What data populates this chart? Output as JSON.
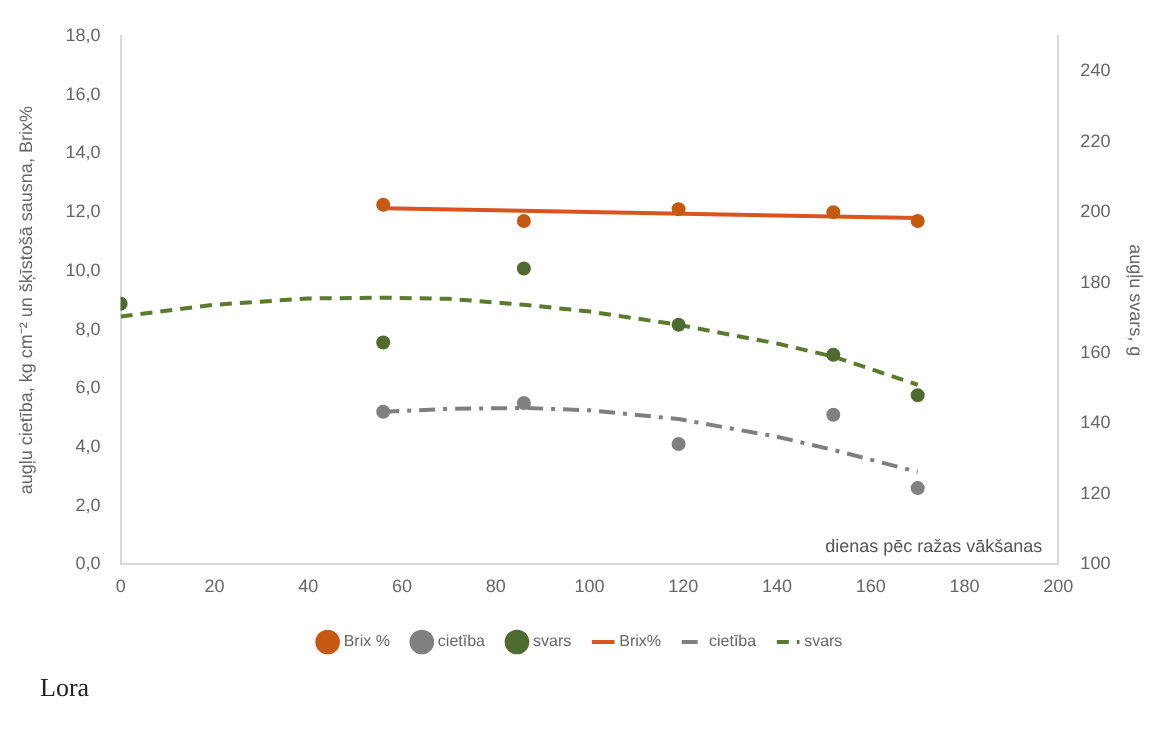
{
  "chart_data": {
    "type": "scatter",
    "ylabel": "augļu cietība, kg cm⁻² un šķīstošā sausna, Brix%",
    "y2label": "augļu svars, g",
    "xlabel": "dienas pēc ražas vākšanas",
    "annotations": [
      "Lora"
    ],
    "xlim": [
      0,
      200
    ],
    "xticks": [
      0,
      20,
      40,
      60,
      80,
      100,
      120,
      140,
      160,
      180,
      200
    ],
    "ylim": [
      0,
      18
    ],
    "yticks": [
      {
        "value": 0,
        "label": "0,0"
      },
      {
        "value": 2,
        "label": "2,0"
      },
      {
        "value": 4,
        "label": "4,0"
      },
      {
        "value": 6,
        "label": "6,0"
      },
      {
        "value": 8,
        "label": "8,0"
      },
      {
        "value": 10,
        "label": "10,0"
      },
      {
        "value": 12,
        "label": "12,0"
      },
      {
        "value": 14,
        "label": "14,0"
      },
      {
        "value": 16,
        "label": "16,0"
      },
      {
        "value": 18,
        "label": "18,0"
      }
    ],
    "y2lim": [
      100,
      250
    ],
    "y2ticks": [
      100,
      120,
      140,
      160,
      180,
      200,
      220,
      240
    ],
    "grid": false,
    "legend": "bottom",
    "series": [
      {
        "name": "Brix %",
        "type": "scatter",
        "marker": "circle",
        "color": "#c65911",
        "x": [
          56,
          86,
          119,
          152,
          170
        ],
        "values": [
          12.25,
          11.7,
          12.1,
          12.0,
          11.7
        ]
      },
      {
        "name": "cietība",
        "type": "scatter",
        "marker": "circle",
        "color": "#808080",
        "x": [
          56,
          86,
          119,
          152,
          170
        ],
        "values": [
          5.2,
          5.5,
          4.1,
          5.1,
          2.6
        ]
      },
      {
        "name": "svars",
        "type": "scatter",
        "marker": "circle",
        "color": "#4e6b30",
        "axis": "y2",
        "x": [
          0,
          56,
          86,
          119,
          152,
          170
        ],
        "values": [
          174,
          163,
          184,
          168,
          159.5,
          148
        ]
      },
      {
        "name": "Brix%",
        "type": "line",
        "marker": "none",
        "line_style": "solid",
        "color": "#d9541e",
        "x": [
          56,
          170
        ],
        "values": [
          12.13,
          11.8
        ]
      },
      {
        "name": "cietība",
        "type": "line",
        "marker": "none",
        "line_style": "dashdot",
        "color": "#7f7f7f",
        "x": [
          56,
          70,
          86,
          100,
          119,
          140,
          152,
          170
        ],
        "values": [
          5.2,
          5.3,
          5.33,
          5.25,
          4.95,
          4.35,
          3.9,
          3.15
        ]
      },
      {
        "name": "svars",
        "type": "line",
        "marker": "none",
        "line_style": "dashed",
        "color": "#5a7a2e",
        "axis": "y2",
        "x": [
          0,
          20,
          40,
          56,
          70,
          86,
          100,
          119,
          140,
          152,
          170
        ],
        "values": [
          170.4,
          173.7,
          175.5,
          175.7,
          175.4,
          173.7,
          171.8,
          168,
          162.7,
          159,
          151
        ]
      }
    ]
  }
}
